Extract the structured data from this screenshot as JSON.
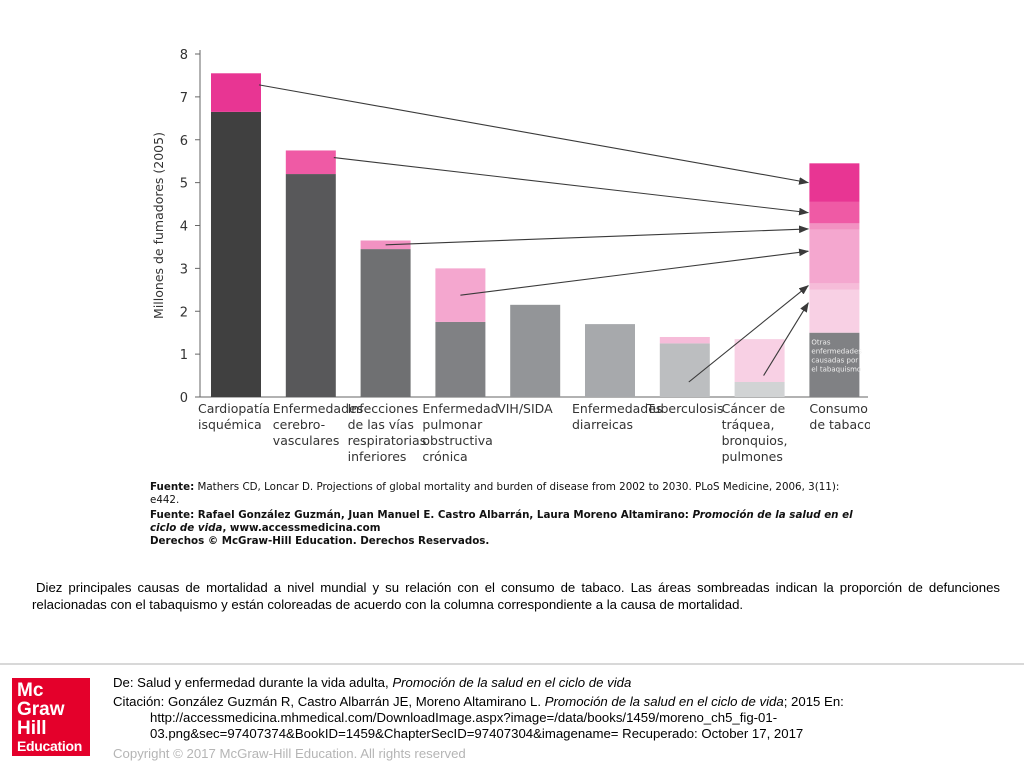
{
  "chart_data": {
    "type": "bar",
    "subtype": "stacked",
    "ylabel": "Millones de fumadores (2005)",
    "ylim": [
      0,
      8
    ],
    "yticks": [
      "0",
      "1",
      "2",
      "3",
      "4",
      "5",
      "6",
      "7",
      "8"
    ],
    "categories": [
      {
        "lines": [
          "Cardiopatía",
          "isquémica"
        ],
        "total": 7.55,
        "non_tobacco": 6.65,
        "tobacco": 0.9,
        "base_color": "#404040",
        "tobacco_color": "#e83593"
      },
      {
        "lines": [
          "Enfermedades",
          "cerebro-",
          "vasculares"
        ],
        "total": 5.75,
        "non_tobacco": 5.2,
        "tobacco": 0.55,
        "base_color": "#58585a",
        "tobacco_color": "#ef5aa5"
      },
      {
        "lines": [
          "Infecciones",
          "de las vías",
          "respiratorias",
          "inferiores"
        ],
        "total": 3.65,
        "non_tobacco": 3.45,
        "tobacco": 0.2,
        "base_color": "#6f7072",
        "tobacco_color": "#f292c2"
      },
      {
        "lines": [
          "Enfermedad",
          "pulmonar",
          "obstructiva",
          "crónica"
        ],
        "total": 3.0,
        "non_tobacco": 1.75,
        "tobacco": 1.25,
        "base_color": "#808184",
        "tobacco_color": "#f4a7cf"
      },
      {
        "lines": [
          "VIH/SIDA"
        ],
        "total": 2.15,
        "non_tobacco": 2.15,
        "tobacco": 0,
        "base_color": "#939598",
        "tobacco_color": "#f4a7cf"
      },
      {
        "lines": [
          "Enfermedades",
          "diarreicas"
        ],
        "total": 1.7,
        "non_tobacco": 1.7,
        "tobacco": 0,
        "base_color": "#a7a9ac",
        "tobacco_color": "#f4a7cf"
      },
      {
        "lines": [
          "Tuberculosis"
        ],
        "total": 1.4,
        "non_tobacco": 1.25,
        "tobacco": 0.15,
        "base_color": "#bcbec0",
        "tobacco_color": "#f6bcd9"
      },
      {
        "lines": [
          "Cáncer de",
          "tráquea,",
          "bronquios,",
          "pulmones"
        ],
        "total": 1.35,
        "non_tobacco": 0.35,
        "tobacco": 1.0,
        "base_color": "#d1d3d4",
        "tobacco_color": "#f8d0e4"
      }
    ],
    "summary_bar": {
      "lines": [
        "Consumo",
        "de tabaco"
      ],
      "segments": [
        {
          "from": 0,
          "to": 1.5,
          "color": "#808184"
        },
        {
          "from": 1.5,
          "to": 2.5,
          "color": "#f8d0e4"
        },
        {
          "from": 2.5,
          "to": 2.65,
          "color": "#f6bcd9"
        },
        {
          "from": 2.65,
          "to": 3.9,
          "color": "#f4a7cf"
        },
        {
          "from": 3.9,
          "to": 4.05,
          "color": "#f292c2"
        },
        {
          "from": 4.05,
          "to": 4.55,
          "color": "#ef5aa5"
        },
        {
          "from": 4.55,
          "to": 5.45,
          "color": "#e83593"
        }
      ],
      "annotation": [
        "Otras",
        "enfermedades",
        "causadas por",
        "el tabaquismo"
      ]
    },
    "arrows": [
      {
        "from_category": 0,
        "to_value": 5.0
      },
      {
        "from_category": 1,
        "to_value": 4.3
      },
      {
        "from_category": 2,
        "to_value": 3.92
      },
      {
        "from_category": 3,
        "to_value": 3.4
      },
      {
        "from_category": 6,
        "to_value": 2.6
      },
      {
        "from_category": 7,
        "to_value": 2.2
      }
    ],
    "grid": false,
    "legend": "none"
  },
  "sources": {
    "s1_label": "Fuente:",
    "s1_text": " Mathers CD, Loncar D. Projections of global mortality and burden of disease from 2002 to 2030. PLoS Medicine, 2006, 3(11): e442.",
    "s2_label": "Fuente:",
    "s2_authors": " Rafael González Guzmán, Juan Manuel E. Castro Albarrán, Laura Moreno Altamirano: ",
    "s2_title": "Promoción de la salud en el ciclo de vida",
    "s2_url": ", www.accessmedicina.com",
    "s2_rights": "Derechos © McGraw-Hill Education. Derechos Reservados."
  },
  "caption": "Diez principales causas de mortalidad a nivel mundial y su relación con el consumo de tabaco. Las áreas sombreadas indican la proporción de defunciones relacionadas con el tabaquismo y están coloreadas de acuerdo con la columna correspondiente a la causa de mortalidad.",
  "footer": {
    "from_prefix": "De: Salud y enfermedad durante la vida adulta, ",
    "from_title": "Promoción de la salud en el ciclo de vida",
    "cite_prefix": "Citación: González Guzmán R, Castro Albarrán JE, Moreno Altamirano L. ",
    "cite_title": "Promoción de la salud en el ciclo de vida",
    "cite_suffix": "; 2015 En:",
    "url_line1": "http://accessmedicina.mhmedical.com/DownloadImage.aspx?image=/data/books/1459/moreno_ch5_fig-01-",
    "url_line2": "03.png&sec=97407374&BookID=1459&ChapterSecID=97407304&imagename= Recuperado: October 17, 2017",
    "copyright": "Copyright © 2017 McGraw-Hill Education. All rights reserved"
  },
  "logo": {
    "line1": "Mc",
    "line2": "Graw",
    "line3": "Hill",
    "line4": "Education",
    "color": "#e4002b"
  }
}
